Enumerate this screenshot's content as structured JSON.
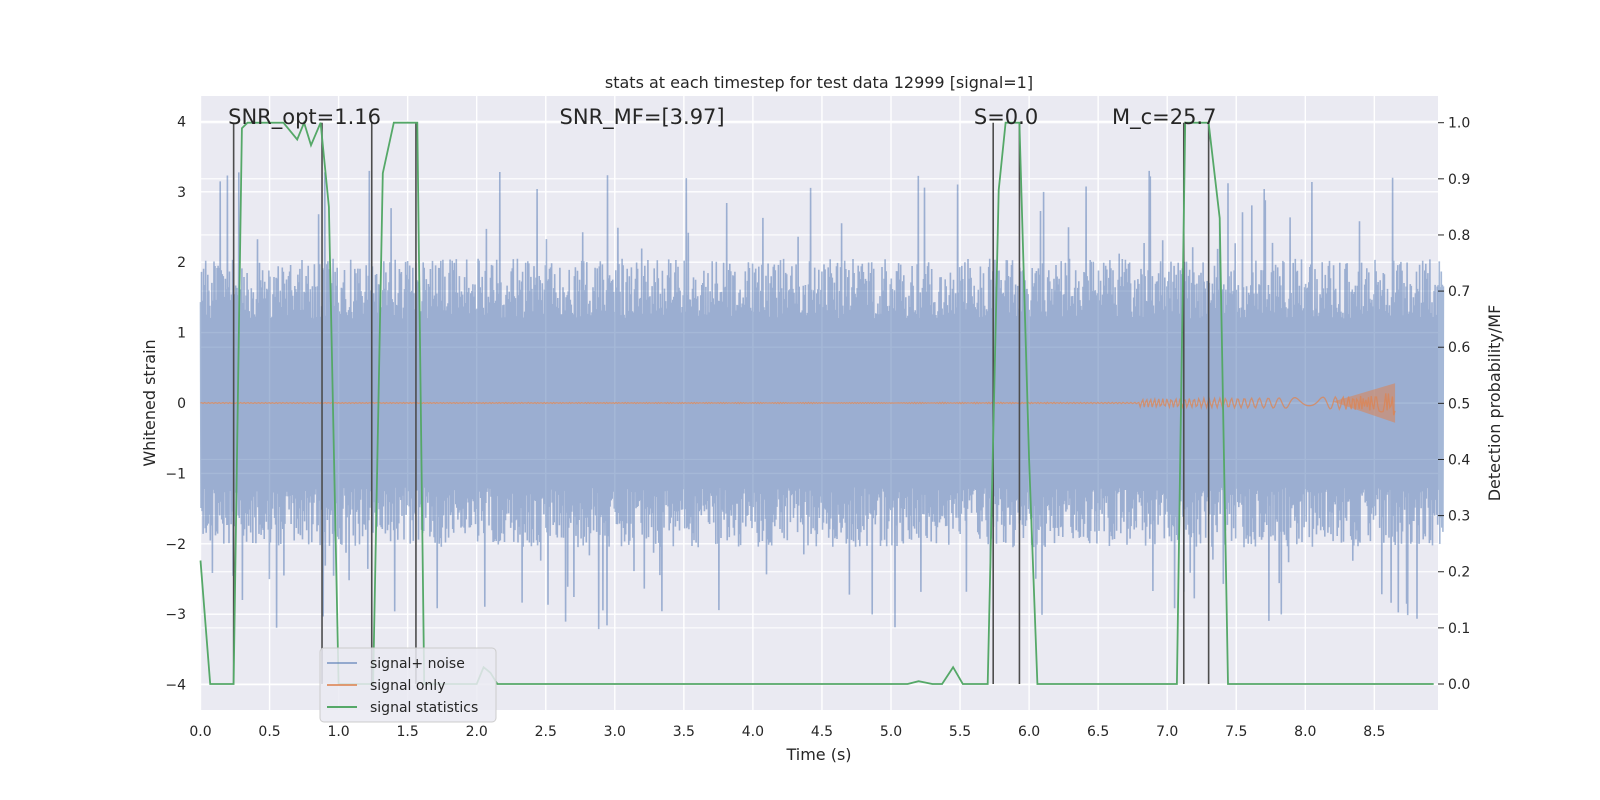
{
  "chart_data": {
    "type": "line",
    "title": "stats at each timestep for test data 12999 [signal=1]",
    "xlabel": "Time (s)",
    "ylabel": "Whitened strain",
    "ylabel_right": "Detection probability/MF",
    "xlim": [
      0.0,
      9.0
    ],
    "ylim": [
      -4.4,
      4.4
    ],
    "ylim_right": [
      -0.048,
      1.048
    ],
    "x_ticks": [
      "0.0",
      "0.5",
      "1.0",
      "1.5",
      "2.0",
      "2.5",
      "3.0",
      "3.5",
      "4.0",
      "4.5",
      "5.0",
      "5.5",
      "6.0",
      "6.5",
      "7.0",
      "7.5",
      "8.0",
      "8.5"
    ],
    "y_ticks": [
      "4",
      "3",
      "2",
      "1",
      "0",
      "−1",
      "−2",
      "−3",
      "−4"
    ],
    "y_ticks_right": [
      "1.0",
      "0.9",
      "0.8",
      "0.7",
      "0.6",
      "0.5",
      "0.4",
      "0.3",
      "0.2",
      "0.1",
      "0.0"
    ],
    "grid": true,
    "legend_position": "lower-left",
    "annotations": [
      {
        "text": "SNR_opt=1.16",
        "x": 0.2,
        "y": 4.0
      },
      {
        "text": "SNR_MF=[3.97]",
        "x": 2.6,
        "y": 4.0
      },
      {
        "text": "S=0.0",
        "x": 5.6,
        "y": 4.0
      },
      {
        "text": "M_c=25.7",
        "x": 6.6,
        "y": 4.0
      }
    ],
    "series": [
      {
        "name": "signal+ noise",
        "color": "#4c72b0",
        "axis": "left",
        "description_source": "dense whitened strain noise, amplitude envelope about ±2 with spikes to ±3.3",
        "x_range": [
          0.0,
          9.0
        ],
        "amplitude_typical": 1.6,
        "amplitude_max": 3.3
      },
      {
        "name": "signal only",
        "color": "#dd8452",
        "axis": "left",
        "chirp_end_time": 8.65,
        "chirp_peak_amplitude": 0.28
      },
      {
        "name": "signal statistics",
        "color": "#55a868",
        "axis": "right",
        "x": [
          0.0,
          0.07,
          0.1,
          0.15,
          0.2,
          0.24,
          0.3,
          0.34,
          0.4,
          0.5,
          0.6,
          0.7,
          0.75,
          0.8,
          0.87,
          0.93,
          1.0,
          1.05,
          1.1,
          1.2,
          1.25,
          1.32,
          1.4,
          1.5,
          1.57,
          1.62,
          1.7,
          1.8,
          1.9,
          2.0,
          2.05,
          2.1,
          2.15,
          2.2,
          2.3,
          3.0,
          4.0,
          5.0,
          5.12,
          5.2,
          5.3,
          5.37,
          5.45,
          5.52,
          5.6,
          5.7,
          5.78,
          5.83,
          5.88,
          5.93,
          6.0,
          6.06,
          6.2,
          7.0,
          7.07,
          7.13,
          7.2,
          7.3,
          7.38,
          7.44,
          7.5,
          8.0,
          8.5,
          8.93
        ],
        "y": [
          0.22,
          0.0,
          0.0,
          0.0,
          0.0,
          0.0,
          0.99,
          1.0,
          1.0,
          1.0,
          1.0,
          0.97,
          1.0,
          0.96,
          1.0,
          0.85,
          0.0,
          0.0,
          0.0,
          0.0,
          0.0,
          0.91,
          1.0,
          1.0,
          1.0,
          0.0,
          0.0,
          0.0,
          0.0,
          0.0,
          0.03,
          0.02,
          0.0,
          0.0,
          0.0,
          0.0,
          0.0,
          0.0,
          0.0,
          0.005,
          0.0,
          0.0,
          0.03,
          0.0,
          0.0,
          0.0,
          0.88,
          1.0,
          1.0,
          1.0,
          0.4,
          0.0,
          0.0,
          0.0,
          0.0,
          1.0,
          1.0,
          1.0,
          0.83,
          0.0,
          0.0,
          0.0,
          0.0,
          0.0
        ]
      },
      {
        "name": "",
        "color": "#4d4d4d",
        "axis": "right",
        "type": "vlines",
        "x": [
          0.24,
          0.88,
          1.24,
          1.56,
          5.74,
          5.93,
          7.12,
          7.3
        ],
        "ymin": 0.0,
        "ymax": 1.0
      }
    ]
  }
}
